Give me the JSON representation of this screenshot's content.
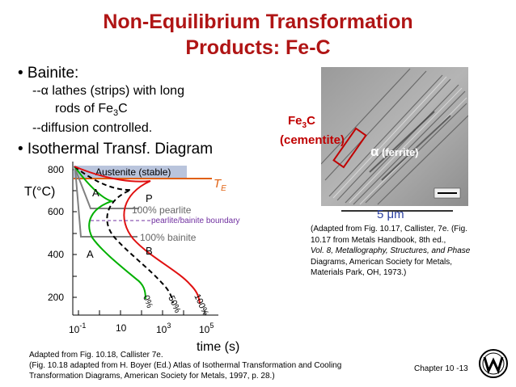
{
  "slide": {
    "title_line1": "Non-Equilibrium Transformation",
    "title_line2": "Products:  Fe-C",
    "bullet1": "• Bainite:",
    "sub1_line1": "--α lathes (strips) with long",
    "sub1_line2_pre": "rods of Fe",
    "sub1_line2_sub": "3",
    "sub1_line2_post": "C",
    "sub2": "--diffusion controlled.",
    "bullet2": "• Isothermal Transf. Diagram",
    "chapter": "Chapter 10 -13"
  },
  "diagram": {
    "y_axis_label": "T(°C)",
    "x_axis_label": "time (s)",
    "y_ticks": [
      "800",
      "600",
      "400",
      "200"
    ],
    "x_ticks": [
      {
        "base": "10",
        "exp": "-1"
      },
      {
        "base": "10",
        "exp": ""
      },
      {
        "base": "10",
        "exp": "3"
      },
      {
        "base": "10",
        "exp": "5"
      }
    ],
    "austenite_label": "Austenite (stable)",
    "te_label": "T",
    "te_sub": "E",
    "region_a_upper": "A",
    "region_a_lower": "A",
    "region_p": "P",
    "region_b": "B",
    "pearlite_label": "100% pearlite",
    "boundary_label": "pearlite/bainite boundary",
    "bainite_label": "100% bainite",
    "curve0_label": "0%",
    "curve50_label": "50%",
    "curve100_label": "100%",
    "colors": {
      "start_curve": "#00b000",
      "finish_curve": "#e01010",
      "mid_curve": "#000000",
      "boundary": "#7030a0",
      "te_line": "#e06010",
      "box_fill": "#b9c4dc",
      "grey_line": "#808080"
    }
  },
  "micrograph": {
    "fe3c_label_pre": "Fe",
    "fe3c_label_sub": "3",
    "fe3c_label_post": "C",
    "cementite_label": "(cementite)",
    "ferrite_alpha": "α",
    "ferrite_label": "(ferrite)",
    "scale_label": "5 μm",
    "caption_lines": [
      "(Adapted from Fig. 10.17, Callister, 7e. (Fig.",
      "10.17 from Metals Handbook, 8th ed.,",
      "Vol. 8, Metallography, Structures, and Phase",
      "Diagrams, American Society for Metals,",
      "Materials Park, OH, 1973.)"
    ]
  },
  "footer": {
    "line1": "Adapted from Fig. 10.18, Callister 7e.",
    "line2": "(Fig. 10.18 adapted from H. Boyer (Ed.) Atlas of Isothermal Transformation and Cooling",
    "line3": "Transformation Diagrams, American Society for Metals, 1997, p. 28.)"
  }
}
